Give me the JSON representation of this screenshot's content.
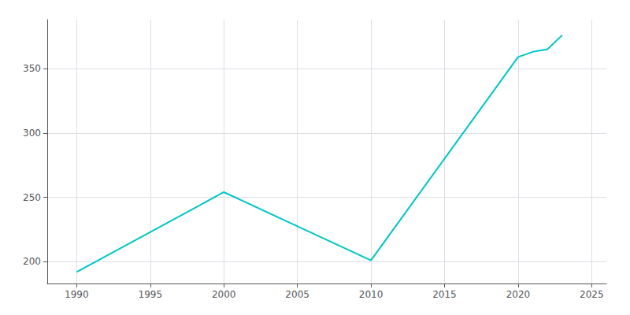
{
  "chart_data": {
    "type": "line",
    "x": [
      1990,
      2000,
      2010,
      2020,
      2021,
      2022,
      2023
    ],
    "values": [
      192,
      254,
      201,
      359,
      363,
      365,
      376
    ],
    "color": "#00C5C5",
    "xlim": [
      1988,
      2026
    ],
    "ylim": [
      183,
      388
    ],
    "xticks": [
      1990,
      1995,
      2000,
      2005,
      2010,
      2015,
      2020,
      2025
    ],
    "yticks": [
      200,
      250,
      300,
      350
    ],
    "grid": true
  }
}
